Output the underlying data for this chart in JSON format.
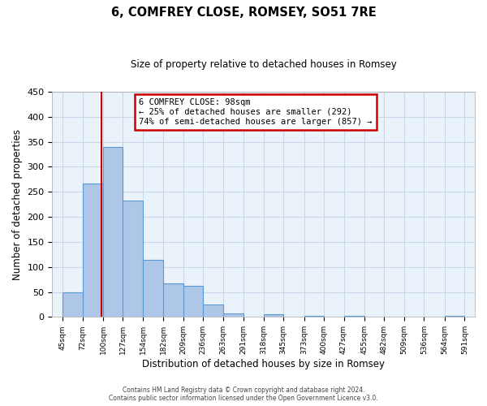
{
  "title": "6, COMFREY CLOSE, ROMSEY, SO51 7RE",
  "subtitle": "Size of property relative to detached houses in Romsey",
  "xlabel": "Distribution of detached houses by size in Romsey",
  "ylabel": "Number of detached properties",
  "bar_left_edges": [
    45,
    72,
    100,
    127,
    154,
    182,
    209,
    236,
    263,
    291,
    318,
    345,
    373,
    400,
    427,
    455,
    482,
    509,
    536,
    564
  ],
  "bar_widths": [
    27,
    28,
    27,
    27,
    28,
    27,
    27,
    27,
    28,
    27,
    27,
    28,
    27,
    27,
    28,
    27,
    27,
    27,
    28,
    27
  ],
  "bar_heights": [
    50,
    267,
    340,
    232,
    114,
    67,
    62,
    25,
    7,
    0,
    5,
    0,
    2,
    0,
    2,
    0,
    0,
    0,
    0,
    2
  ],
  "bar_color": "#AEC6E8",
  "bar_edge_color": "#5B9BD5",
  "x_tick_labels": [
    "45sqm",
    "72sqm",
    "100sqm",
    "127sqm",
    "154sqm",
    "182sqm",
    "209sqm",
    "236sqm",
    "263sqm",
    "291sqm",
    "318sqm",
    "345sqm",
    "373sqm",
    "400sqm",
    "427sqm",
    "455sqm",
    "482sqm",
    "509sqm",
    "536sqm",
    "564sqm",
    "591sqm"
  ],
  "x_tick_positions": [
    45,
    72,
    100,
    127,
    154,
    182,
    209,
    236,
    263,
    291,
    318,
    345,
    373,
    400,
    427,
    455,
    482,
    509,
    536,
    564,
    591
  ],
  "ylim": [
    0,
    450
  ],
  "xlim": [
    31,
    605
  ],
  "property_line_x": 98,
  "property_line_color": "#CC0000",
  "annotation_title": "6 COMFREY CLOSE: 98sqm",
  "annotation_line1": "← 25% of detached houses are smaller (292)",
  "annotation_line2": "74% of semi-detached houses are larger (857) →",
  "annotation_box_color": "#CC0000",
  "grid_color": "#C8D8E8",
  "background_color": "#EAF2FA",
  "yticks": [
    0,
    50,
    100,
    150,
    200,
    250,
    300,
    350,
    400,
    450
  ],
  "footer_line1": "Contains HM Land Registry data © Crown copyright and database right 2024.",
  "footer_line2": "Contains public sector information licensed under the Open Government Licence v3.0."
}
